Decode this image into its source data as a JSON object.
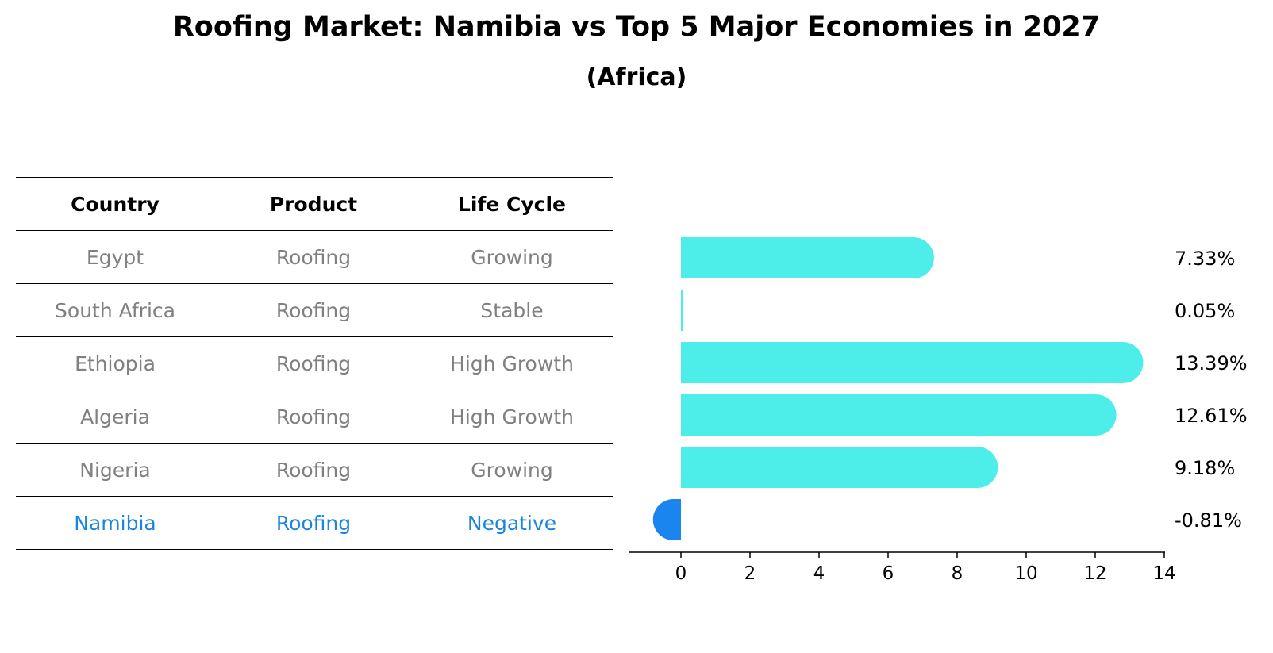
{
  "title": "Roofing Market: Namibia vs Top 5 Major Economies in 2027",
  "subtitle": "(Africa)",
  "table": {
    "headers": [
      "Country",
      "Product",
      "Life Cycle"
    ],
    "rows": [
      [
        "Egypt",
        "Roofing",
        "Growing"
      ],
      [
        "South Africa",
        "Roofing",
        "Stable"
      ],
      [
        "Ethiopia",
        "Roofing",
        "High Growth"
      ],
      [
        "Algeria",
        "Roofing",
        "High Growth"
      ],
      [
        "Nigeria",
        "Roofing",
        "Growing"
      ],
      [
        "Namibia",
        "Roofing",
        "Negative"
      ]
    ],
    "highlight_row": 5
  },
  "chart_data": {
    "type": "bar",
    "orientation": "horizontal",
    "categories": [
      "Egypt",
      "South Africa",
      "Ethiopia",
      "Algeria",
      "Nigeria",
      "Namibia"
    ],
    "values": [
      7.33,
      0.05,
      13.39,
      12.61,
      9.18,
      -0.81
    ],
    "value_labels": [
      "7.33%",
      "0.05%",
      "13.39%",
      "12.61%",
      "9.18%",
      "-0.81%"
    ],
    "xlim": [
      -1.5,
      14
    ],
    "xticks": [
      0,
      2,
      4,
      6,
      8,
      10,
      12,
      14
    ],
    "xtick_labels": [
      "0",
      "2",
      "4",
      "6",
      "8",
      "10",
      "12",
      "14"
    ],
    "colors": {
      "default": "#4deeea",
      "highlight": "#1a85ee",
      "text_highlight": "#1a85e0",
      "text_muted": "#808080"
    }
  }
}
